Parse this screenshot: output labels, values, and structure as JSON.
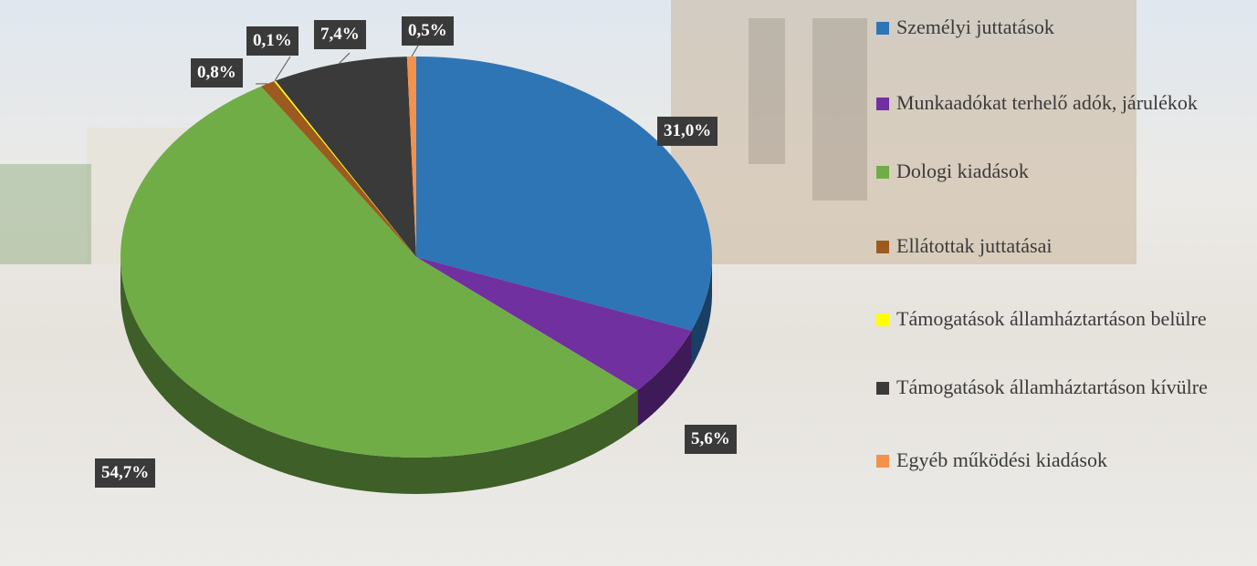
{
  "chart_data": {
    "type": "pie",
    "categories": [
      "Személyi juttatások",
      "Munkaadókat terhelő adók, járulékok",
      "Dologi  kiadások",
      "Ellátottak juttatásai",
      "Támogatások államháztartáson belülre",
      "Támogatások államháztartáson kívülre",
      "Egyéb működési kiadások"
    ],
    "values": [
      31.0,
      5.6,
      54.7,
      0.8,
      0.1,
      7.4,
      0.5
    ],
    "value_labels": [
      "31,0%",
      "5,6%",
      "54,7%",
      "0,8%",
      "0,1%",
      "7,4%",
      "0,5%"
    ],
    "colors": [
      "#2e75b6",
      "#7030a0",
      "#70ad47",
      "#9c5a1e",
      "#ffff00",
      "#3a3a3a",
      "#f4914a"
    ],
    "legend": "right"
  }
}
